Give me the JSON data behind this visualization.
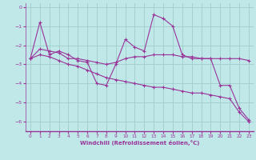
{
  "xlabel": "Windchill (Refroidissement éolien,°C)",
  "bg_color": "#c0e8e8",
  "line_color": "#993399",
  "grid_color": "#a0cccc",
  "ylim": [
    -6.5,
    0.2
  ],
  "xlim": [
    -0.5,
    23.5
  ],
  "yticks": [
    0,
    -1,
    -2,
    -3,
    -4,
    -5,
    -6
  ],
  "xticks": [
    0,
    1,
    2,
    3,
    4,
    5,
    6,
    7,
    8,
    9,
    10,
    11,
    12,
    13,
    14,
    15,
    16,
    17,
    18,
    19,
    20,
    21,
    22,
    23
  ],
  "line1_x": [
    0,
    1,
    2,
    3,
    4,
    5,
    6,
    7,
    8,
    9,
    10,
    11,
    12,
    13,
    14,
    15,
    16,
    17,
    18,
    19,
    20,
    21,
    22,
    23
  ],
  "line1_y": [
    -2.7,
    -0.8,
    -2.5,
    -2.3,
    -2.5,
    -2.8,
    -2.9,
    -4.0,
    -4.1,
    -3.0,
    -1.7,
    -2.1,
    -2.3,
    -0.4,
    -0.6,
    -1.0,
    -2.5,
    -2.7,
    -2.7,
    -2.7,
    -4.1,
    -4.1,
    -5.3,
    -5.9
  ],
  "line2_x": [
    0,
    1,
    2,
    3,
    4,
    5,
    6,
    7,
    8,
    9,
    10,
    11,
    12,
    13,
    14,
    15,
    16,
    17,
    18,
    19,
    20,
    21,
    22,
    23
  ],
  "line2_y": [
    -2.7,
    -2.2,
    -2.3,
    -2.4,
    -2.7,
    -2.7,
    -2.8,
    -2.9,
    -3.0,
    -2.9,
    -2.7,
    -2.6,
    -2.6,
    -2.5,
    -2.5,
    -2.5,
    -2.6,
    -2.6,
    -2.7,
    -2.7,
    -2.7,
    -2.7,
    -2.7,
    -2.8
  ],
  "line3_x": [
    0,
    1,
    2,
    3,
    4,
    5,
    6,
    7,
    8,
    9,
    10,
    11,
    12,
    13,
    14,
    15,
    16,
    17,
    18,
    19,
    20,
    21,
    22,
    23
  ],
  "line3_y": [
    -2.7,
    -2.5,
    -2.6,
    -2.8,
    -3.0,
    -3.1,
    -3.3,
    -3.5,
    -3.7,
    -3.8,
    -3.9,
    -4.0,
    -4.1,
    -4.2,
    -4.2,
    -4.3,
    -4.4,
    -4.5,
    -4.5,
    -4.6,
    -4.7,
    -4.8,
    -5.5,
    -6.0
  ]
}
